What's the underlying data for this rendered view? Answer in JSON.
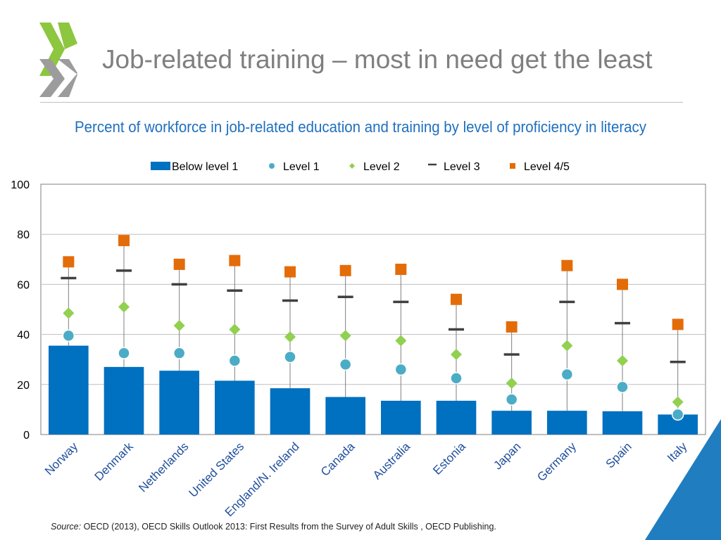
{
  "slide": {
    "title": "Job-related training – most in need get the least",
    "source_label": "Source:",
    "source_text": "OECD (2013), OECD Skills Outlook 2013: First Results from the Survey of Adult Skills , OECD Publishing."
  },
  "colors": {
    "logo_green": "#8dc63f",
    "logo_gray": "#9c9c9c",
    "accent_blue": "#0066b3",
    "corner_blue": "#1f7dc0"
  },
  "chart_data": {
    "type": "bar",
    "title": "Percent of workforce in job-related education and training by level of proficiency in literacy",
    "categories": [
      "Norway",
      "Denmark",
      "Netherlands",
      "United States",
      "England/N. Ireland",
      "Canada",
      "Australia",
      "Estonia",
      "Japan",
      "Germany",
      "Spain",
      "Italy"
    ],
    "series": [
      {
        "name": "Below level 1",
        "kind": "bar",
        "color": "#0070c0",
        "values": [
          35.5,
          27,
          25.5,
          21.5,
          18.5,
          15,
          13.5,
          13.5,
          9.5,
          9.5,
          9.3,
          8
        ]
      },
      {
        "name": "Level 1",
        "kind": "circle",
        "color": "#4bacc6",
        "values": [
          39.5,
          32.5,
          32.5,
          29.5,
          31,
          28,
          26,
          22.5,
          14,
          24,
          19,
          8
        ]
      },
      {
        "name": "Level 2",
        "kind": "diamond",
        "color": "#92d050",
        "values": [
          48.5,
          51,
          43.5,
          42,
          39,
          39.5,
          37.5,
          32,
          20.5,
          35.5,
          29.5,
          13
        ]
      },
      {
        "name": "Level 3",
        "kind": "dash",
        "color": "#404040",
        "values": [
          62.5,
          65.5,
          60,
          57.5,
          53.5,
          55,
          53,
          42,
          32,
          53,
          44.5,
          29
        ]
      },
      {
        "name": "Level 4/5",
        "kind": "square",
        "color": "#e36c09",
        "values": [
          69,
          77.5,
          68,
          69.5,
          65,
          65.5,
          66,
          54,
          43,
          67.5,
          60,
          44
        ]
      }
    ],
    "ylim": [
      0,
      100
    ],
    "yticks": [
      0,
      20,
      40,
      60,
      80,
      100
    ],
    "grid": true,
    "legend": "top"
  }
}
